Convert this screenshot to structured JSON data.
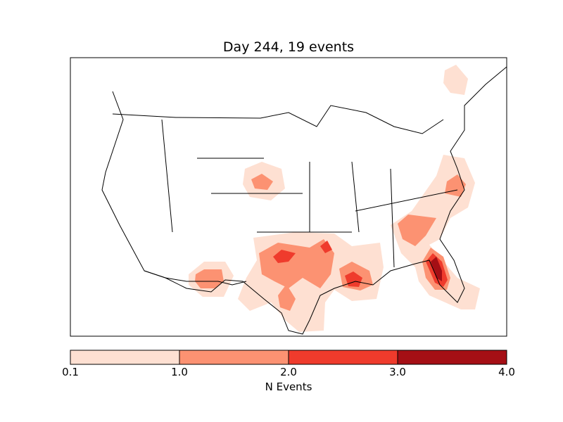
{
  "title": "Day 244, 19 events",
  "colorbar": {
    "label": "N Events",
    "ticks": [
      "0.1",
      "1.0",
      "2.0",
      "3.0",
      "4.0"
    ],
    "levels": [
      0.1,
      1.0,
      2.0,
      3.0,
      4.0
    ],
    "colors": [
      "#fee0d2",
      "#fc9272",
      "#ef3b2c",
      "#a50f15"
    ]
  }
}
